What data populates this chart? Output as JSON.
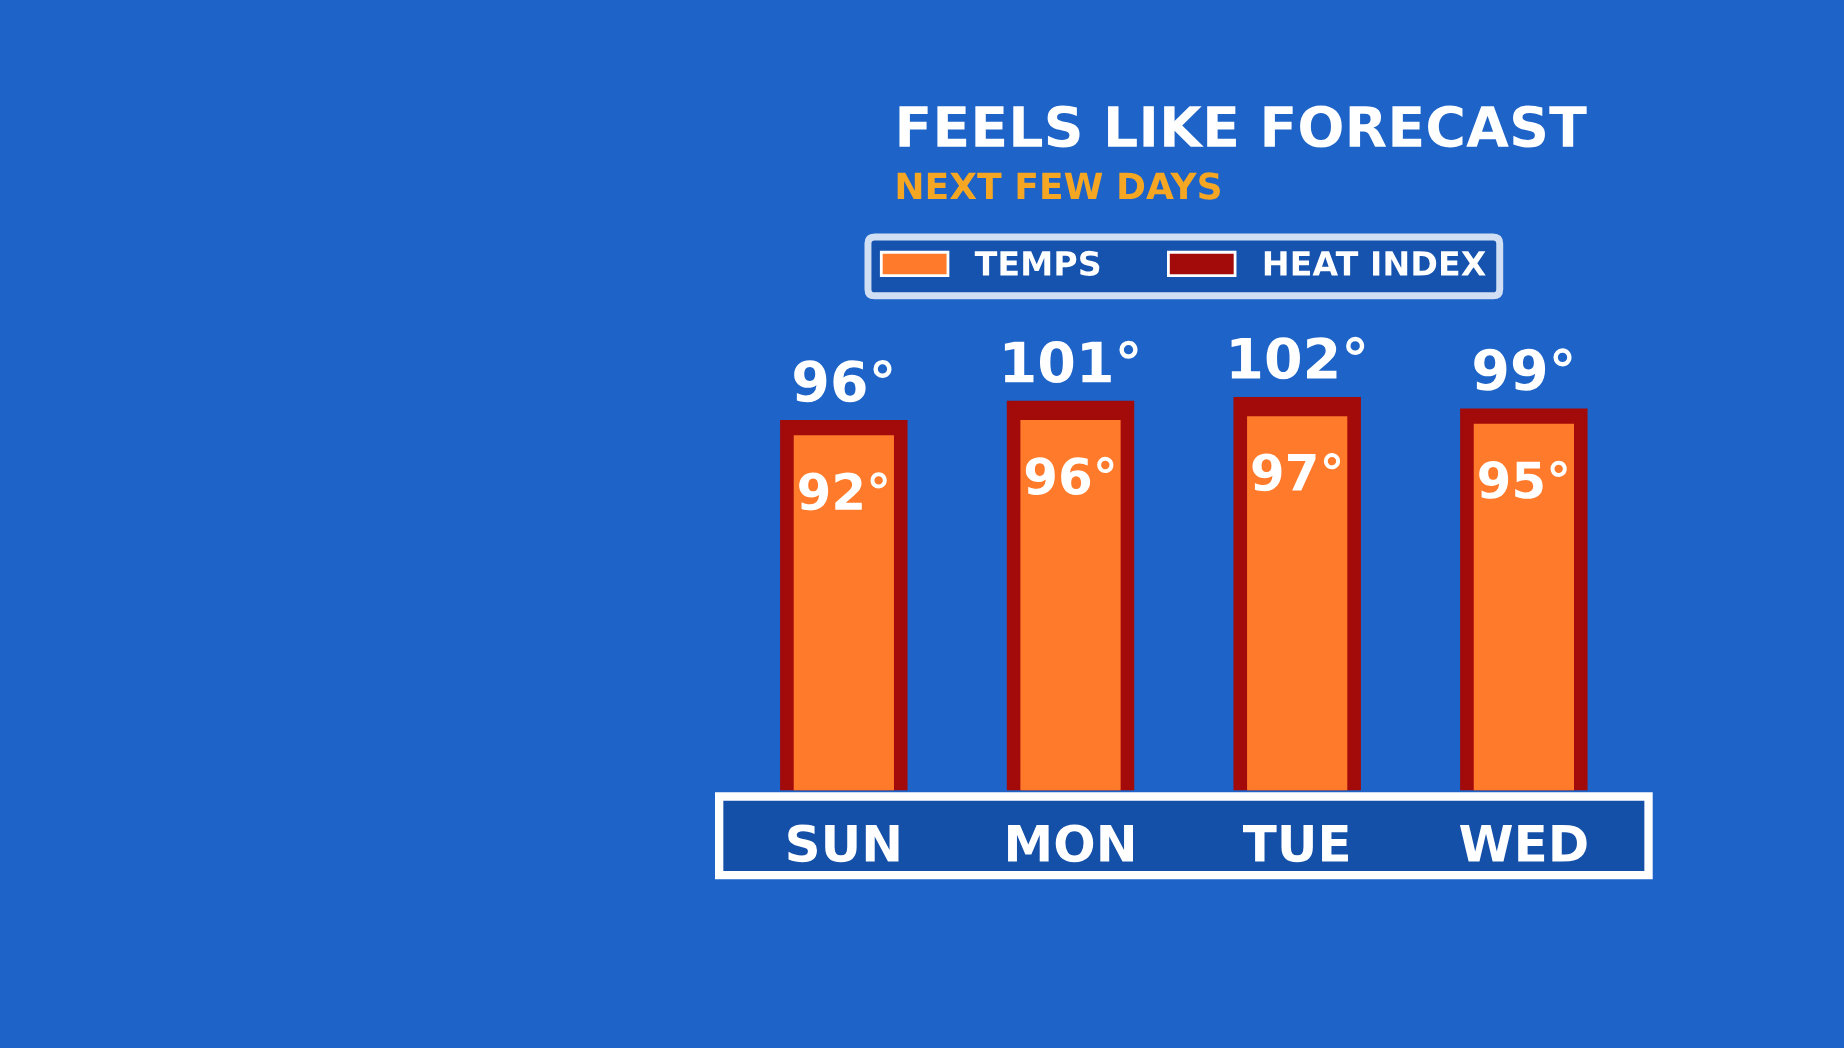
{
  "chart_data": {
    "type": "bar",
    "title": "FEELS LIKE FORECAST",
    "subtitle": "NEXT FEW DAYS",
    "categories": [
      "SUN",
      "MON",
      "TUE",
      "WED"
    ],
    "series": [
      {
        "name": "HEAT INDEX",
        "color": "#a30a0a",
        "values": [
          96,
          101,
          102,
          99
        ],
        "value_labels": [
          "96°",
          "101°",
          "102°",
          "99°"
        ]
      },
      {
        "name": "TEMPS",
        "color": "#ff7a2a",
        "values": [
          92,
          96,
          97,
          95
        ],
        "value_labels": [
          "92°",
          "96°",
          "97°",
          "95°"
        ]
      }
    ],
    "legend": "top",
    "grid": false
  }
}
